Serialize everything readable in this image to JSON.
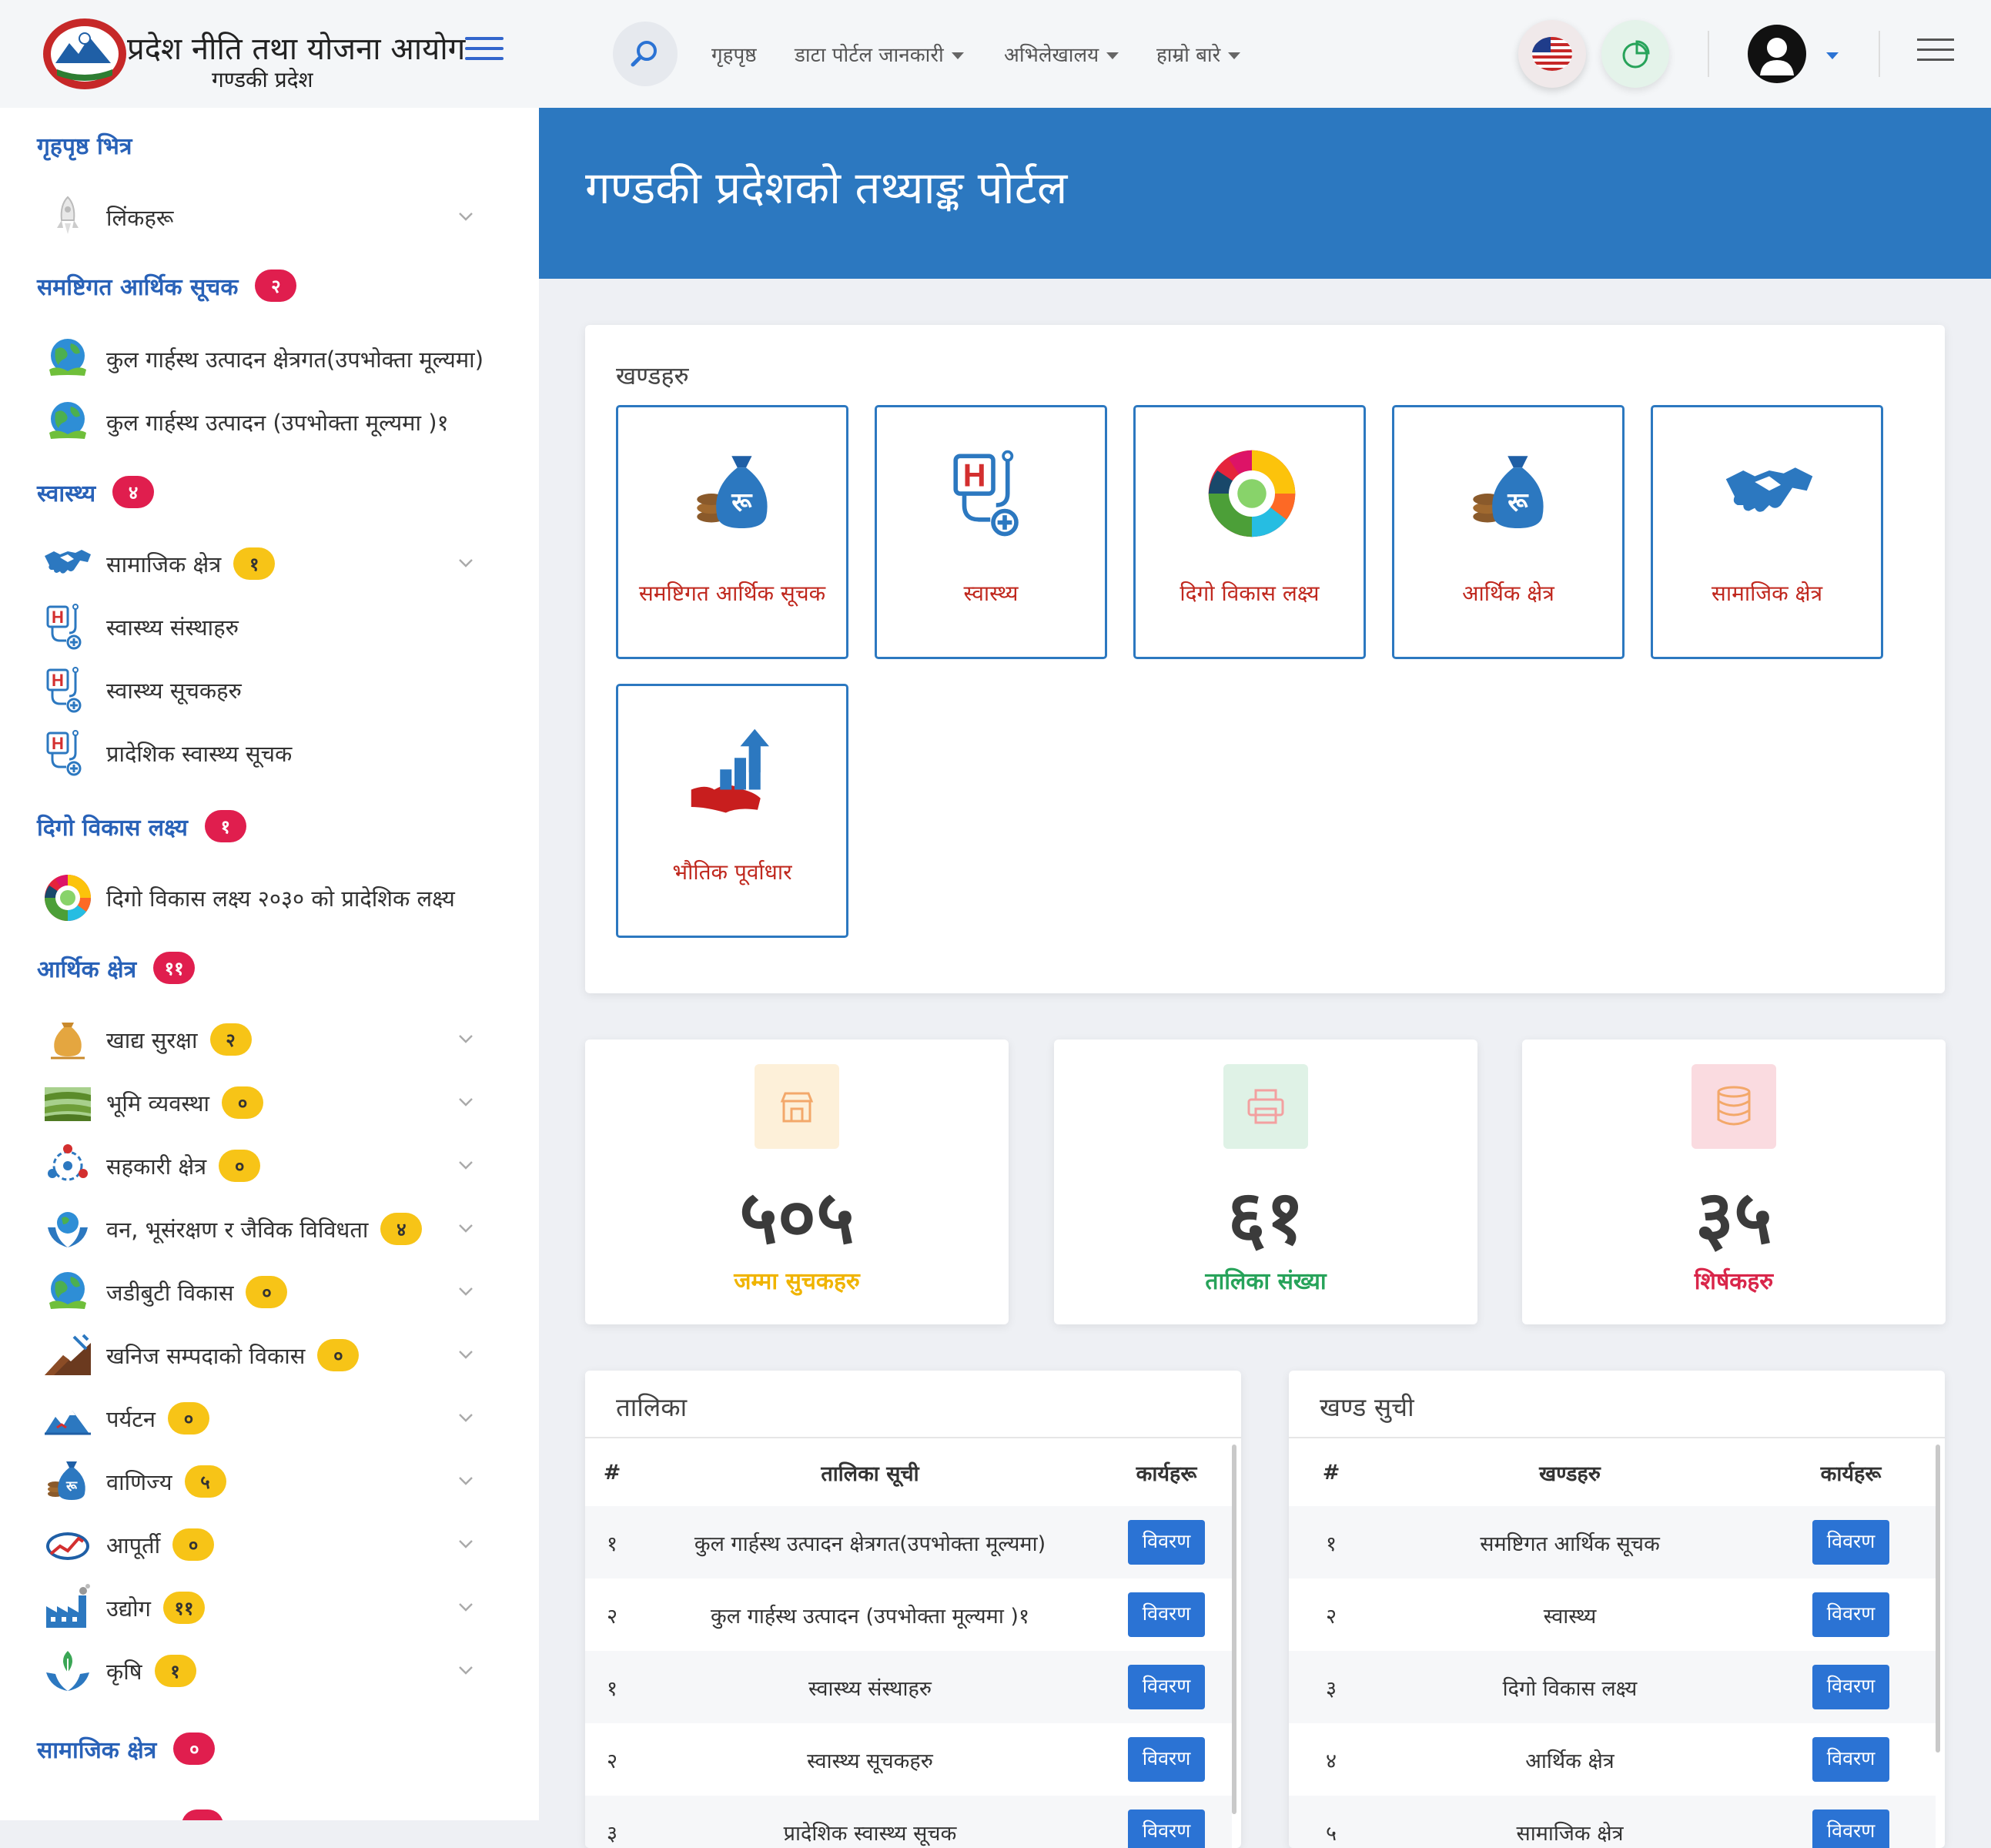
{
  "brand": {
    "title": "प्रदेश नीति तथा योजना आयोग",
    "subtitle": "गण्डकी प्रदेश"
  },
  "topnav": {
    "home": "गृहपृष्ठ",
    "portal_info": "डाटा पोर्टल जानकारी",
    "archive": "अभिलेखालय",
    "about": "हाम्रो बारे"
  },
  "hero": {
    "title": "गण्डकी प्रदेशको तथ्याङ्क पोर्टल"
  },
  "sidebar": {
    "home_section": {
      "label": "गृहपृष्ठ भित्र"
    },
    "links": {
      "label": "लिंकहरू"
    },
    "macro": {
      "label": "समष्टिगत आर्थिक सूचक",
      "count": "२"
    },
    "gdp_sector": "कुल गार्हस्थ उत्पादन क्षेत्रगत(उपभोक्ता मूल्यमा)",
    "gdp_total": "कुल गार्हस्थ उत्पादन (उपभोक्ता मूल्यमा )१",
    "health": {
      "label": "स्वास्थ्य",
      "count": "४"
    },
    "social_sector": {
      "label": "सामाजिक क्षेत्र",
      "count": "१"
    },
    "health_institutions": "स्वास्थ्य संस्थाहरु",
    "health_indicators": "स्वास्थ्य सूचकहरु",
    "provincial_health": "प्रादेशिक स्वास्थ्य सूचक",
    "sdg": {
      "label": "दिगो विकास लक्ष्य",
      "count": "१"
    },
    "sdg_2030": "दिगो विकास लक्ष्य २०३० को प्रादेशिक लक्ष्य",
    "economic": {
      "label": "आर्थिक क्षेत्र",
      "count": "११"
    },
    "econ_items": [
      {
        "label": "खाद्य सुरक्षा",
        "count": "२"
      },
      {
        "label": "भूमि व्यवस्था",
        "count": "०"
      },
      {
        "label": "सहकारी क्षेत्र",
        "count": "०"
      },
      {
        "label": "वन, भूसंरक्षण र जैविक विविधता",
        "count": "४"
      },
      {
        "label": "जडीबुटी विकास",
        "count": "०"
      },
      {
        "label": "खनिज सम्पदाको विकास",
        "count": "०"
      },
      {
        "label": "पर्यटन",
        "count": "०"
      },
      {
        "label": "वाणिज्य",
        "count": "५"
      },
      {
        "label": "आपूर्ती",
        "count": "०"
      },
      {
        "label": "उद्योग",
        "count": "११"
      },
      {
        "label": "कृषि",
        "count": "१"
      }
    ],
    "social": {
      "label": "सामाजिक क्षेत्र",
      "count": "०"
    }
  },
  "sections": {
    "title": "खण्डहरु",
    "tiles": [
      {
        "label": "समष्टिगत आर्थिक सूचक",
        "icon": "money-bag-icon"
      },
      {
        "label": "स्वास्थ्य",
        "icon": "stethoscope-icon"
      },
      {
        "label": "दिगो विकास लक्ष्य",
        "icon": "sdg-wheel-icon"
      },
      {
        "label": "आर्थिक क्षेत्र",
        "icon": "money-bag-icon"
      },
      {
        "label": "सामाजिक क्षेत्र",
        "icon": "handshake-icon"
      },
      {
        "label": "भौतिक पूर्वाधार",
        "icon": "growth-chart-icon"
      }
    ]
  },
  "stats": [
    {
      "value": "५०५",
      "label": "जम्मा सुचकहरु",
      "color": "#f0b400"
    },
    {
      "value": "६१",
      "label": "तालिका संख्या",
      "color": "#27a35a"
    },
    {
      "value": "३५",
      "label": "शिर्षकहरु",
      "color": "#d9264a"
    }
  ],
  "tables_card": {
    "title": "तालिका",
    "headers": [
      "#",
      "तालिका सूची",
      "कार्यहरू"
    ],
    "rows": [
      {
        "num": "१",
        "name": "कुल गार्हस्थ उत्पादन क्षेत्रगत(उपभोक्ता मूल्यमा)",
        "action": "विवरण"
      },
      {
        "num": "२",
        "name": "कुल गार्हस्थ उत्पादन (उपभोक्ता मूल्यमा )१",
        "action": "विवरण"
      },
      {
        "num": "१",
        "name": "स्वास्थ्य संस्थाहरु",
        "action": "विवरण"
      },
      {
        "num": "२",
        "name": "स्वास्थ्य सूचकहरु",
        "action": "विवरण"
      },
      {
        "num": "३",
        "name": "प्रादेशिक स्वास्थ्य सूचक",
        "action": "विवरण"
      }
    ]
  },
  "sections_card": {
    "title": "खण्ड सुची",
    "headers": [
      "#",
      "खण्डहरु",
      "कार्यहरू"
    ],
    "rows": [
      {
        "num": "१",
        "name": "समष्टिगत आर्थिक सूचक",
        "action": "विवरण"
      },
      {
        "num": "२",
        "name": "स्वास्थ्य",
        "action": "विवरण"
      },
      {
        "num": "३",
        "name": "दिगो विकास लक्ष्य",
        "action": "विवरण"
      },
      {
        "num": "४",
        "name": "आर्थिक क्षेत्र",
        "action": "विवरण"
      },
      {
        "num": "५",
        "name": "सामाजिक क्षेत्र",
        "action": "विवरण"
      }
    ]
  }
}
